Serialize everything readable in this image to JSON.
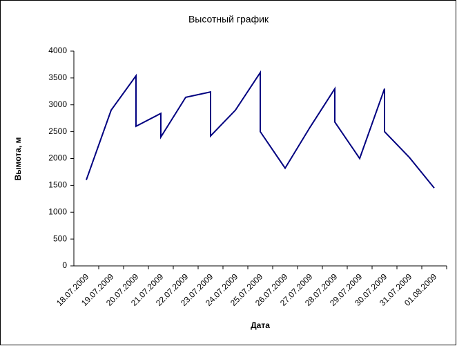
{
  "chart_data": {
    "type": "line",
    "title": "Высотный график",
    "x_label": "Дата",
    "y_label": "Вымота, м",
    "categories": [
      "18.07.2009",
      "19.07.2009",
      "20.07.2009",
      "21.07.2009",
      "22.07.2009",
      "23.07.2009",
      "24.07.2009",
      "25.07.2009",
      "26.07.2009",
      "27.07.2009",
      "28.07.2009",
      "29.07.2009",
      "30.07.2009",
      "31.07.2009",
      "01.08.2009"
    ],
    "x": [
      "18.07.2009",
      "19.07.2009",
      "20.07.2009",
      "20.07.2009",
      "21.07.2009",
      "21.07.2009",
      "22.07.2009",
      "23.07.2009",
      "23.07.2009",
      "24.07.2009",
      "25.07.2009",
      "25.07.2009",
      "26.07.2009",
      "27.07.2009",
      "28.07.2009",
      "28.07.2009",
      "29.07.2009",
      "30.07.2009",
      "30.07.2009",
      "31.07.2009",
      "01.08.2009"
    ],
    "values": [
      1600,
      2900,
      3540,
      2600,
      2840,
      2400,
      3140,
      3240,
      2420,
      2900,
      3600,
      2500,
      1820,
      2580,
      3300,
      2680,
      2000,
      3300,
      2500,
      2020,
      1450
    ],
    "color": "#000080",
    "ylim": [
      0,
      4000
    ],
    "yticks": [
      0,
      500,
      1000,
      1500,
      2000,
      2500,
      3000,
      3500,
      4000
    ],
    "grid": false
  }
}
